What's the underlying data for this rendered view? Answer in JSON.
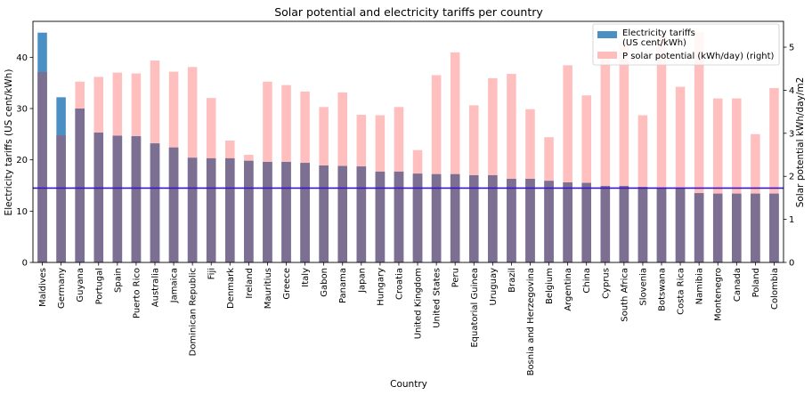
{
  "chart_data": {
    "type": "bar",
    "title": "Solar potential and electricity tariffs per country",
    "xlabel": "Country",
    "ylabel": "Electricity tariffs (US cent/kWh)",
    "ylabel_right": "Solar potential kWh/day/m2",
    "ylim": [
      0,
      47
    ],
    "ylim_right": [
      0,
      5.6
    ],
    "yticks": [
      0,
      10,
      20,
      30,
      40
    ],
    "yticks_right": [
      0,
      1,
      2,
      3,
      4,
      5
    ],
    "legend_position": "top-right",
    "hline": {
      "y": 14.5,
      "color": "#3a17c4"
    },
    "categories": [
      "Maldives",
      "Germany",
      "Guyana",
      "Portugal",
      "Spain",
      "Puerto Rico",
      "Australia",
      "Jamaica",
      "Dominican Republic",
      "Fiji",
      "Denmark",
      "Ireland",
      "Mauritius",
      "Greece",
      "Italy",
      "Gabon",
      "Panama",
      "Japan",
      "Hungary",
      "Croatia",
      "United Kingdom",
      "United States",
      "Peru",
      "Equatorial Guinea",
      "Uruguay",
      "Brazil",
      "Bosnia and Herzegovina",
      "Belgium",
      "Argentina",
      "China",
      "Cyprus",
      "South Africa",
      "Slovenia",
      "Botswana",
      "Costa Rica",
      "Namibia",
      "Montenegro",
      "Canada",
      "Poland",
      "Colombia"
    ],
    "series": [
      {
        "name": "Electricity tariffs\n(US cent/kWh)",
        "axis": "left",
        "color": "#4a90c4",
        "values": [
          44.8,
          32.2,
          30.0,
          25.3,
          24.7,
          24.6,
          23.2,
          22.4,
          20.4,
          20.3,
          20.3,
          19.8,
          19.6,
          19.6,
          19.4,
          18.9,
          18.8,
          18.7,
          17.7,
          17.7,
          17.3,
          17.2,
          17.2,
          17.0,
          17.0,
          16.3,
          16.3,
          15.9,
          15.6,
          15.5,
          14.9,
          14.9,
          14.7,
          14.6,
          14.5,
          13.5,
          13.4,
          13.4,
          13.4,
          13.4
        ]
      },
      {
        "name": "P solar potential (kWh/day) (right)",
        "axis": "right",
        "color": "#ffbcbc",
        "values": [
          4.42,
          2.95,
          4.2,
          4.31,
          4.41,
          4.39,
          4.69,
          4.43,
          4.54,
          3.82,
          2.83,
          2.5,
          4.2,
          4.12,
          3.97,
          3.61,
          3.95,
          3.43,
          3.42,
          3.61,
          2.61,
          4.35,
          4.88,
          3.65,
          4.28,
          4.38,
          3.56,
          2.91,
          4.58,
          3.88,
          4.74,
          5.1,
          3.42,
          5.27,
          4.08,
          5.35,
          3.81,
          3.81,
          2.98,
          4.05
        ]
      }
    ]
  }
}
